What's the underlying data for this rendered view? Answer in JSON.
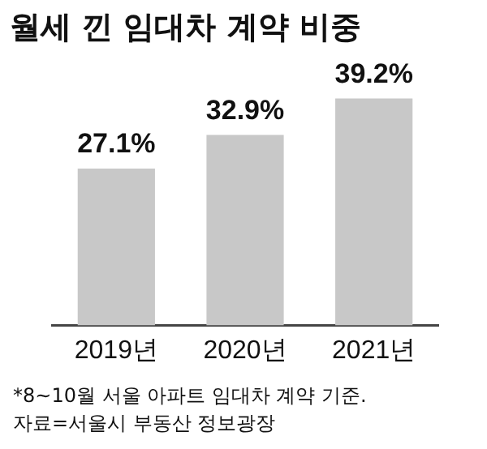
{
  "chart_data": {
    "type": "bar",
    "title": "월세 낀 임대차 계약 비중",
    "categories": [
      "2019년",
      "2020년",
      "2021년"
    ],
    "values": [
      27.1,
      32.9,
      39.2
    ],
    "color": "#c8c8c8",
    "value_labels": [
      "27.1%",
      "32.9%",
      "39.2%"
    ],
    "grid": false,
    "legend": false,
    "annotations": [
      "*8~10월 서울 아파트 임대차 계약 기준.",
      "자료=서울시 부동산 정보광장"
    ]
  }
}
